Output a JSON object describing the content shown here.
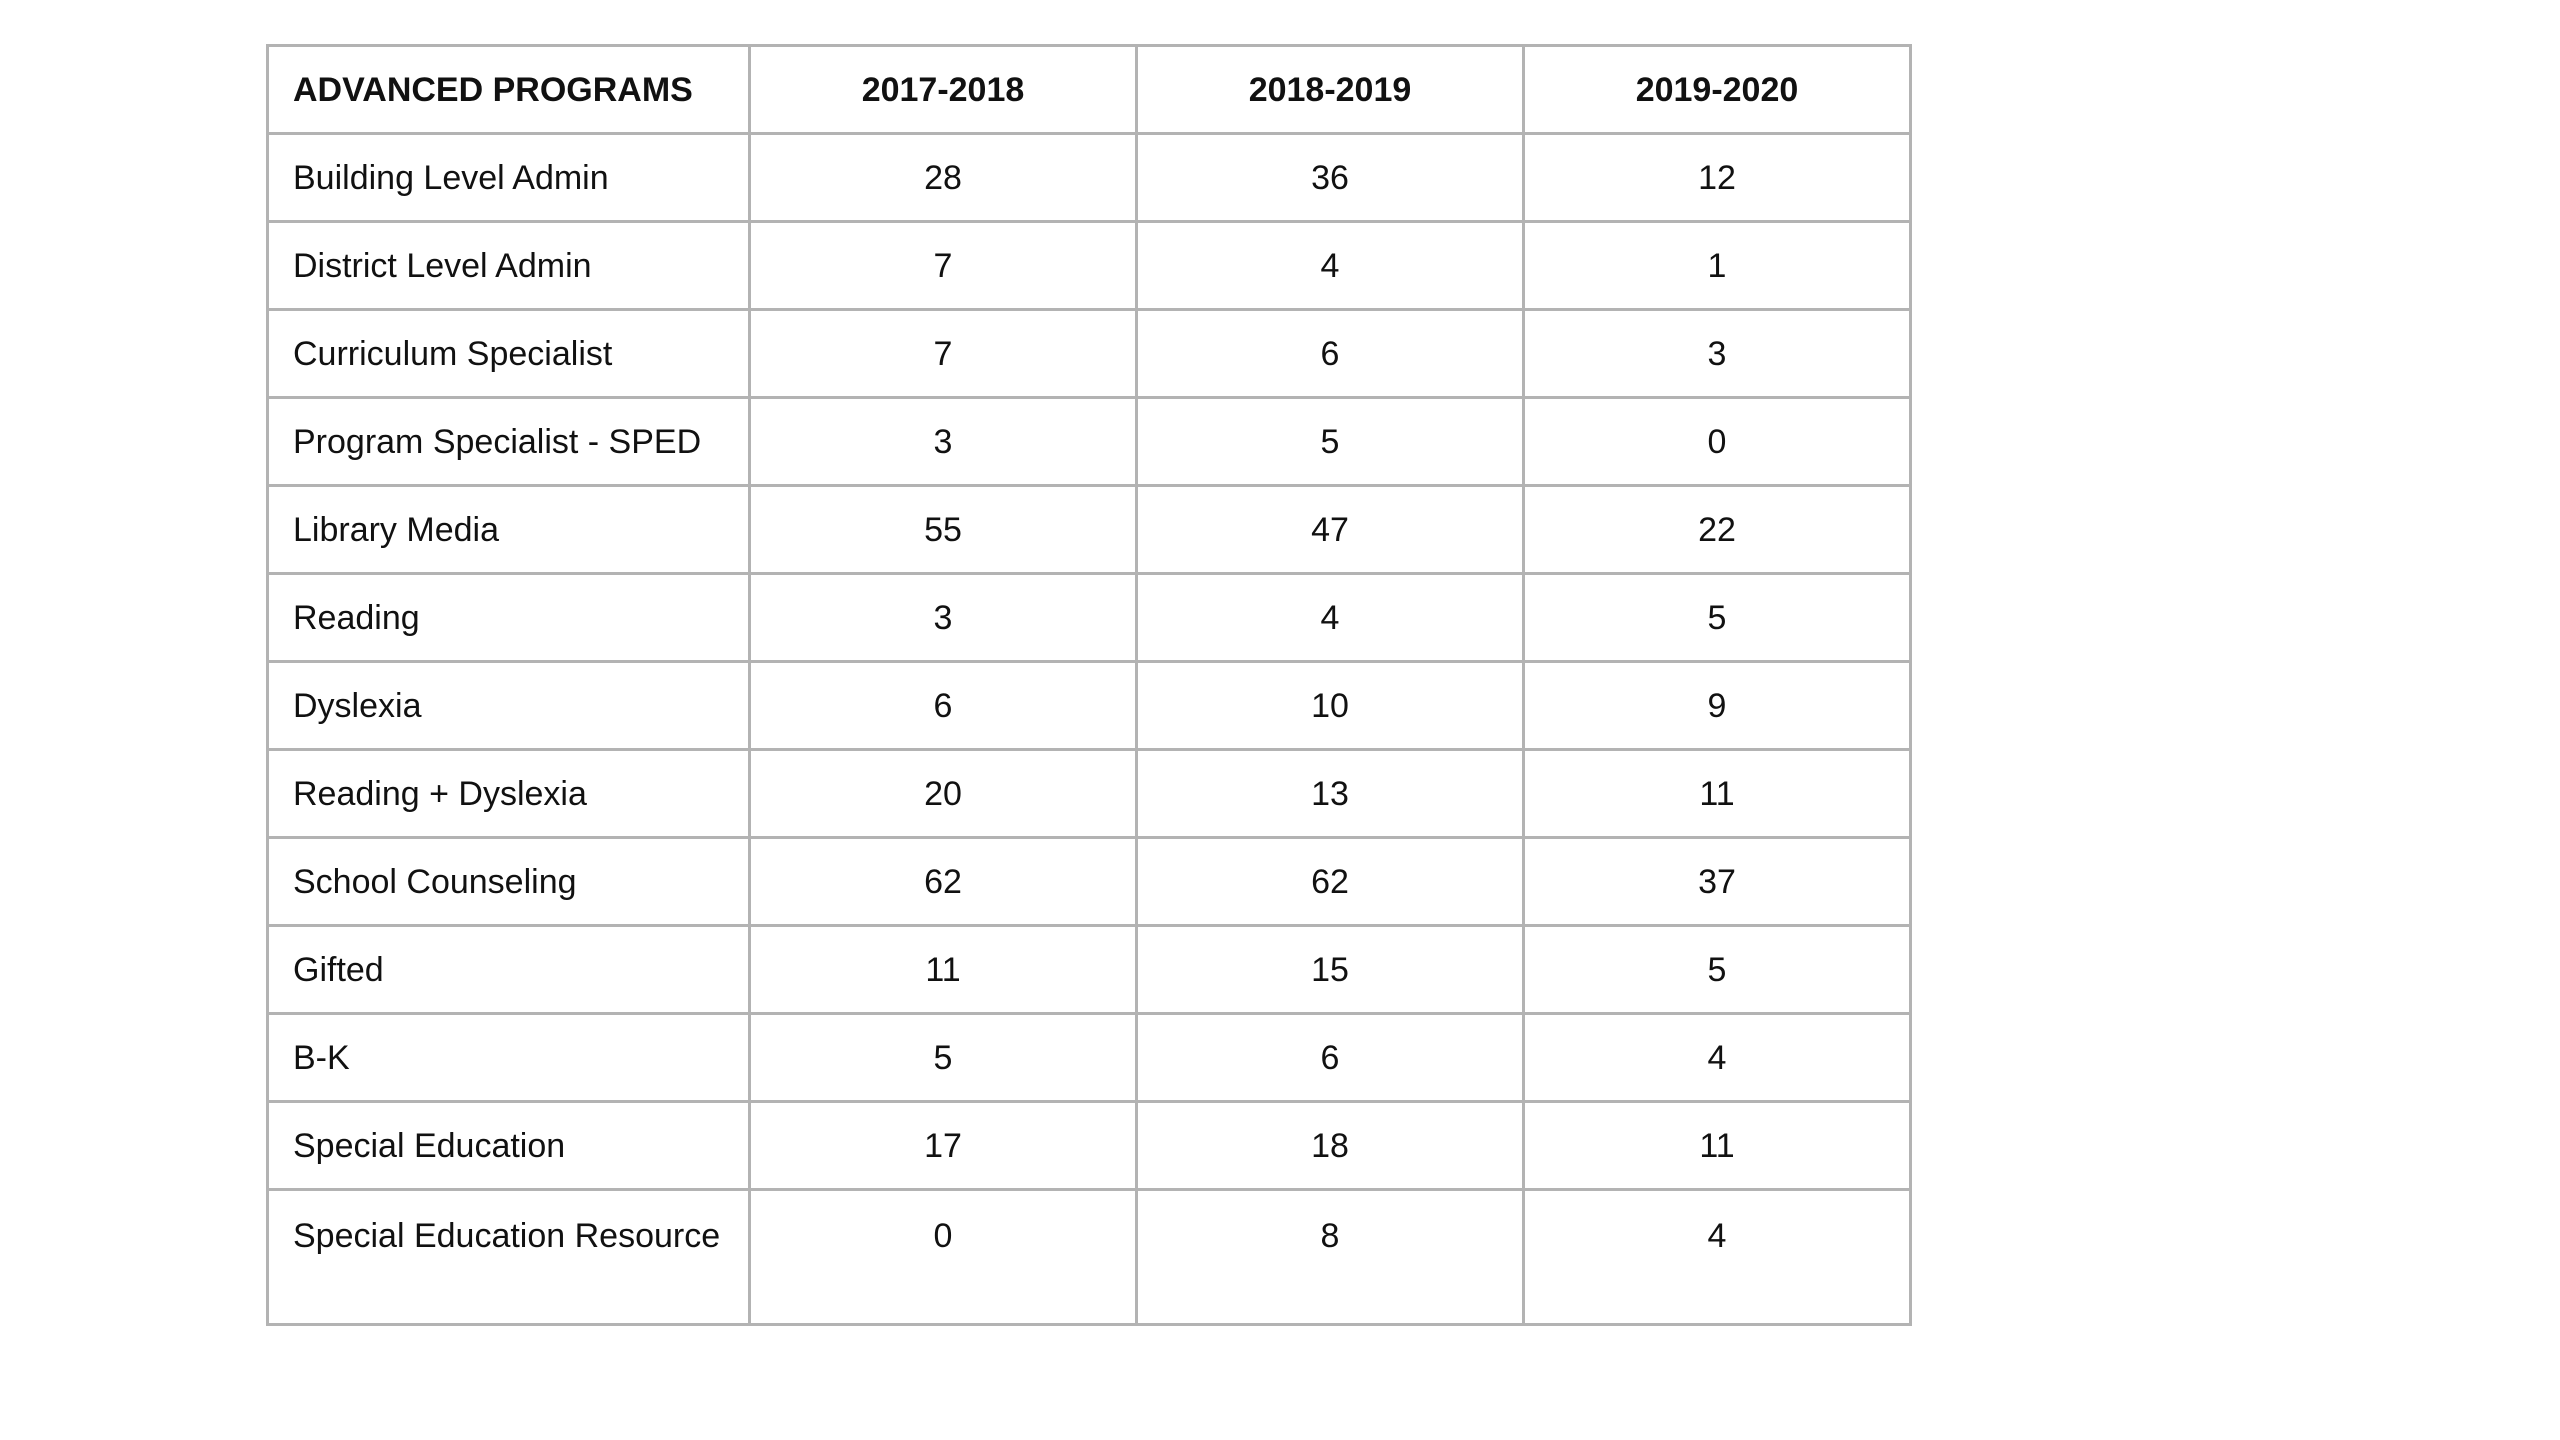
{
  "table": {
    "headers": [
      "ADVANCED PROGRAMS",
      "2017-2018",
      "2018-2019",
      "2019-2020"
    ],
    "rows": [
      {
        "label": "Building Level Admin",
        "values": [
          "28",
          "36",
          "12"
        ]
      },
      {
        "label": "District Level Admin",
        "values": [
          "7",
          "4",
          "1"
        ]
      },
      {
        "label": "Curriculum Specialist",
        "values": [
          "7",
          "6",
          "3"
        ]
      },
      {
        "label": "Program Specialist - SPED",
        "values": [
          "3",
          "5",
          "0"
        ]
      },
      {
        "label": "Library Media",
        "values": [
          "55",
          "47",
          "22"
        ]
      },
      {
        "label": "Reading",
        "values": [
          "3",
          "4",
          "5"
        ]
      },
      {
        "label": "Dyslexia",
        "values": [
          "6",
          "10",
          "9"
        ]
      },
      {
        "label": "Reading + Dyslexia",
        "values": [
          "20",
          "13",
          "11"
        ]
      },
      {
        "label": "School Counseling",
        "values": [
          "62",
          "62",
          "37"
        ]
      },
      {
        "label": "Gifted",
        "values": [
          "11",
          "15",
          "5"
        ]
      },
      {
        "label": "B-K",
        "values": [
          "5",
          "6",
          "4"
        ]
      },
      {
        "label": "Special Education",
        "values": [
          "17",
          "18",
          "11"
        ]
      },
      {
        "label": "Special Education Resource",
        "values": [
          "0",
          "8",
          "4"
        ]
      }
    ]
  }
}
